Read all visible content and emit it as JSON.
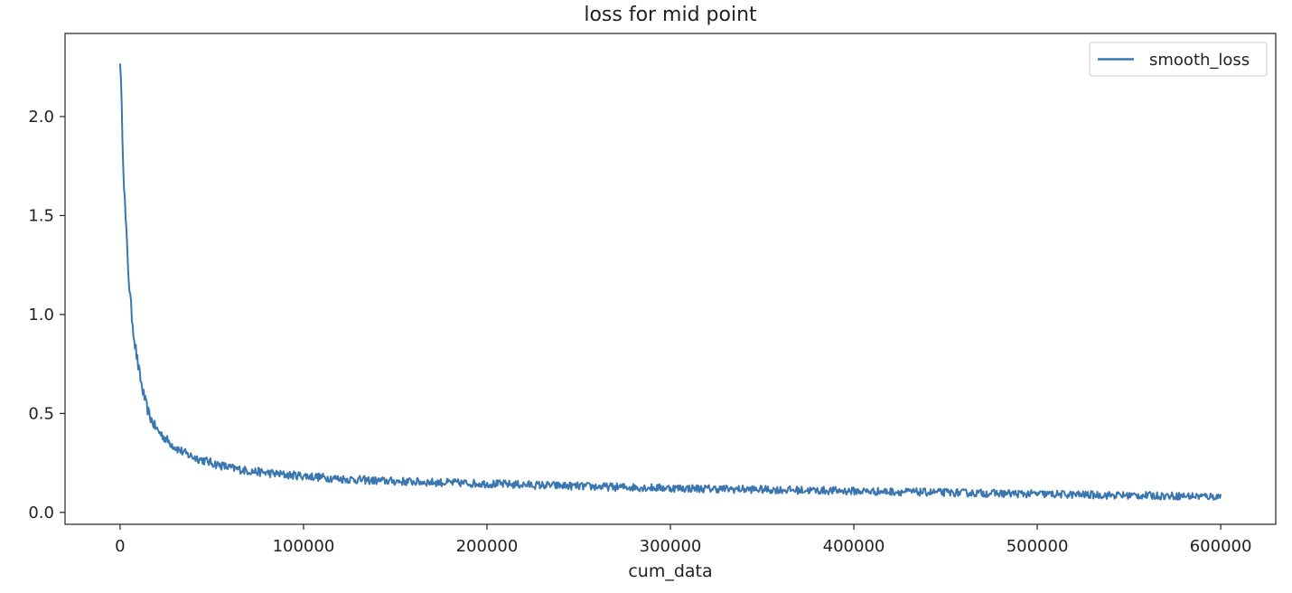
{
  "chart_data": {
    "type": "line",
    "title": "loss for mid point",
    "xlabel": "cum_data",
    "ylabel": "",
    "xlim": [
      -30000,
      630000
    ],
    "ylim": [
      -0.06,
      2.42
    ],
    "xticks": [
      0,
      100000,
      200000,
      300000,
      400000,
      500000,
      600000
    ],
    "xtick_labels": [
      "0",
      "100000",
      "200000",
      "300000",
      "400000",
      "500000",
      "600000"
    ],
    "yticks": [
      0.0,
      0.5,
      1.0,
      1.5,
      2.0
    ],
    "ytick_labels": [
      "0.0",
      "0.5",
      "1.0",
      "1.5",
      "2.0"
    ],
    "grid": false,
    "legend_position": "top-right",
    "series": [
      {
        "name": "smooth_loss",
        "color": "#3a76af",
        "x": [
          0,
          1000,
          2000,
          3000,
          4000,
          5000,
          6000,
          8000,
          10000,
          12000,
          14000,
          16000,
          18000,
          20000,
          25000,
          30000,
          35000,
          40000,
          45000,
          50000,
          60000,
          70000,
          80000,
          90000,
          100000,
          120000,
          140000,
          160000,
          180000,
          200000,
          220000,
          240000,
          260000,
          280000,
          300000,
          320000,
          340000,
          360000,
          380000,
          400000,
          420000,
          440000,
          460000,
          480000,
          500000,
          520000,
          540000,
          560000,
          580000,
          600000
        ],
        "y": [
          2.3,
          2.0,
          1.7,
          1.48,
          1.3,
          1.15,
          1.03,
          0.86,
          0.73,
          0.63,
          0.55,
          0.49,
          0.45,
          0.42,
          0.37,
          0.33,
          0.3,
          0.28,
          0.265,
          0.25,
          0.225,
          0.21,
          0.2,
          0.19,
          0.185,
          0.17,
          0.16,
          0.155,
          0.15,
          0.145,
          0.14,
          0.135,
          0.13,
          0.127,
          0.123,
          0.12,
          0.117,
          0.114,
          0.111,
          0.108,
          0.105,
          0.102,
          0.099,
          0.096,
          0.093,
          0.09,
          0.087,
          0.085,
          0.083,
          0.08
        ],
        "noise_amplitude": 0.025
      }
    ]
  }
}
